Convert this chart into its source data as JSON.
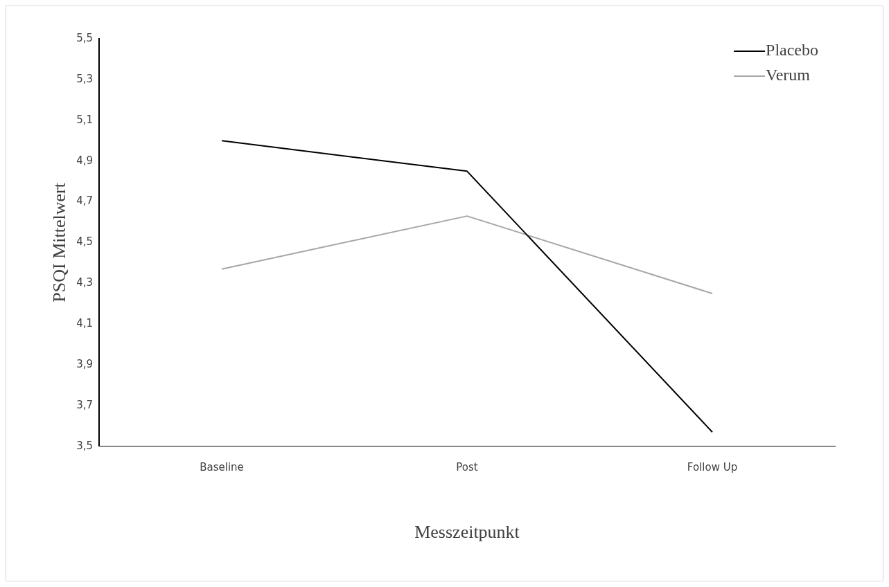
{
  "chart_data": {
    "type": "line",
    "xlabel": "Messzeitpunkt",
    "ylabel": "PSQI Mittelwert",
    "categories": [
      "Baseline",
      "Post",
      "Follow Up"
    ],
    "series": [
      {
        "name": "Placebo",
        "color": "#000000",
        "values": [
          5.0,
          4.85,
          3.57
        ]
      },
      {
        "name": "Verum",
        "color": "#a6a6a6",
        "values": [
          4.37,
          4.63,
          4.25
        ]
      }
    ],
    "ylim": [
      3.5,
      5.5
    ],
    "yticks": [
      {
        "value": 3.5,
        "label": "3,5"
      },
      {
        "value": 3.7,
        "label": "3,7"
      },
      {
        "value": 3.9,
        "label": "3,9"
      },
      {
        "value": 4.1,
        "label": "4,1"
      },
      {
        "value": 4.3,
        "label": "4,3"
      },
      {
        "value": 4.5,
        "label": "4,5"
      },
      {
        "value": 4.7,
        "label": "4,7"
      },
      {
        "value": 4.9,
        "label": "4,9"
      },
      {
        "value": 5.1,
        "label": "5,1"
      },
      {
        "value": 5.3,
        "label": "5,3"
      },
      {
        "value": 5.5,
        "label": "5,5"
      }
    ],
    "grid": false,
    "legend": "top right",
    "marker": "none",
    "line_style": "solid"
  }
}
